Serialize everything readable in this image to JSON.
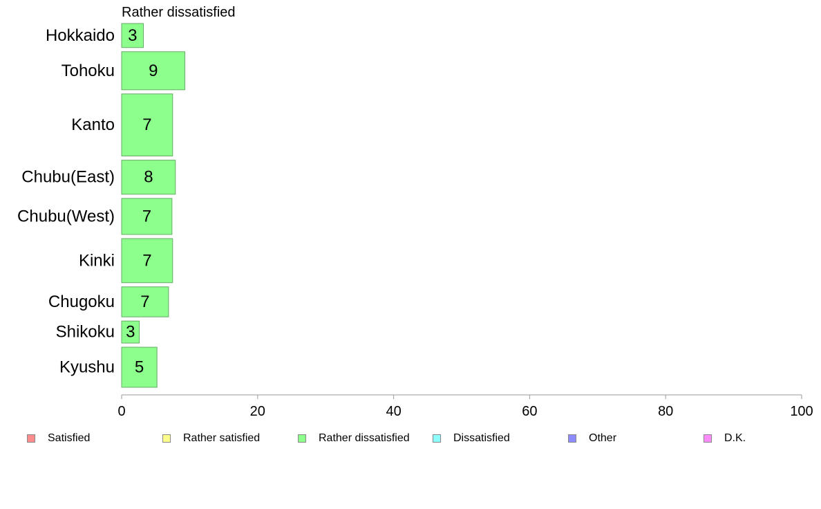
{
  "chart_data": {
    "type": "bar",
    "orientation": "horizontal",
    "title": "Rather dissatisfied",
    "categories": [
      "Hokkaido",
      "Tohoku",
      "Kanto",
      "Chubu(East)",
      "Chubu(West)",
      "Kinki",
      "Chugoku",
      "Shikoku",
      "Kyushu"
    ],
    "values": [
      3.2,
      9.3,
      7.5,
      7.9,
      7.4,
      7.5,
      6.9,
      2.6,
      5.2
    ],
    "data_labels": [
      "3",
      "9",
      "7",
      "8",
      "7",
      "7",
      "7",
      "3",
      "5"
    ],
    "relative_bar_widths": [
      0.6,
      0.95,
      1.55,
      0.85,
      0.9,
      1.1,
      0.75,
      0.55,
      1.0
    ],
    "bar_color": "#8cff8c",
    "bar_border_color": "#66aa66",
    "xlim": [
      0,
      100
    ],
    "xticks": [
      "0",
      "20",
      "40",
      "60",
      "80",
      "100"
    ],
    "grid": false,
    "legend_position": "bottom",
    "legend": [
      {
        "label": "Satisfied",
        "color": "#ff8c8c"
      },
      {
        "label": "Rather satisfied",
        "color": "#ffff8c"
      },
      {
        "label": "Rather dissatisfied",
        "color": "#8cff8c"
      },
      {
        "label": "Dissatisfied",
        "color": "#8cffff"
      },
      {
        "label": "Other",
        "color": "#8c8cff"
      },
      {
        "label": "D.K.",
        "color": "#ff8cff"
      }
    ]
  }
}
